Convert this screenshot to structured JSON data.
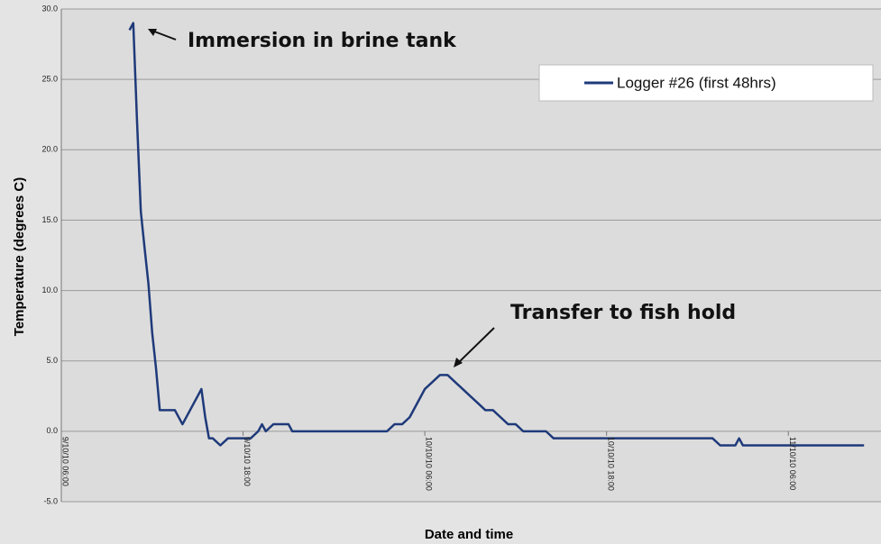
{
  "chart_data": {
    "type": "line",
    "y_label": "Temperature (degrees C)",
    "x_label": "Date and time",
    "annotations": [
      "Immersion in brine tank",
      "Transfer to fish hold"
    ],
    "ylim": [
      -5,
      30
    ],
    "yticks": [
      {
        "value": -5,
        "label": "-5.0"
      },
      {
        "value": 0,
        "label": "0.0"
      },
      {
        "value": 5,
        "label": "5.0"
      },
      {
        "value": 10,
        "label": "10.0"
      },
      {
        "value": 15,
        "label": "15.0"
      },
      {
        "value": 20,
        "label": "20.0"
      },
      {
        "value": 25,
        "label": "25.0"
      },
      {
        "value": 30,
        "label": "30.0"
      }
    ],
    "xlim": [
      "9/10/10 06:00",
      "11/10/10 12:00"
    ],
    "xticks": [
      "9/10/10 06:00",
      "9/10/10 18:00",
      "10/10/10 06:00",
      "10/10/10 18:00",
      "11/10/10 06:00"
    ],
    "grid": true,
    "x": [
      "9/10/10 10:30",
      "9/10/10 10:45",
      "9/10/10 11:00",
      "9/10/10 11:15",
      "9/10/10 11:30",
      "9/10/10 11:45",
      "9/10/10 12:00",
      "9/10/10 12:15",
      "9/10/10 12:30",
      "9/10/10 13:00",
      "9/10/10 13:30",
      "9/10/10 14:00",
      "9/10/10 14:30",
      "9/10/10 15:00",
      "9/10/10 15:15",
      "9/10/10 15:30",
      "9/10/10 15:45",
      "9/10/10 16:00",
      "9/10/10 16:30",
      "9/10/10 17:00",
      "9/10/10 18:00",
      "9/10/10 18:30",
      "9/10/10 19:00",
      "9/10/10 19:15",
      "9/10/10 19:30",
      "9/10/10 20:00",
      "9/10/10 21:00",
      "9/10/10 21:15",
      "10/10/10 00:00",
      "10/10/10 03:30",
      "10/10/10 04:00",
      "10/10/10 04:30",
      "10/10/10 05:00",
      "10/10/10 05:30",
      "10/10/10 06:00",
      "10/10/10 06:30",
      "10/10/10 07:00",
      "10/10/10 07:30",
      "10/10/10 08:00",
      "10/10/10 08:30",
      "10/10/10 09:00",
      "10/10/10 09:30",
      "10/10/10 10:00",
      "10/10/10 10:30",
      "10/10/10 11:00",
      "10/10/10 11:30",
      "10/10/10 12:00",
      "10/10/10 12:30",
      "10/10/10 14:00",
      "10/10/10 14:30",
      "10/10/10 20:00",
      "11/10/10 01:00",
      "11/10/10 01:30",
      "11/10/10 02:30",
      "11/10/10 02:45",
      "11/10/10 03:00",
      "11/10/10 07:00",
      "11/10/10 11:00"
    ],
    "series": [
      {
        "name": "Logger #26 (first 48hrs)",
        "color": "#1f3a7a",
        "values": [
          28.5,
          29.0,
          22.0,
          15.6,
          13.0,
          10.5,
          7.0,
          4.5,
          1.5,
          1.5,
          1.5,
          0.5,
          1.5,
          2.5,
          3.0,
          1.0,
          -0.5,
          -0.5,
          -1.0,
          -0.5,
          -0.5,
          -0.5,
          0.0,
          0.5,
          0.0,
          0.5,
          0.5,
          0.0,
          0.0,
          0.0,
          0.5,
          0.5,
          1.0,
          2.0,
          3.0,
          3.5,
          4.0,
          4.0,
          3.5,
          3.0,
          2.5,
          2.0,
          1.5,
          1.5,
          1.0,
          0.5,
          0.5,
          0.0,
          0.0,
          -0.5,
          -0.5,
          -0.5,
          -1.0,
          -1.0,
          -0.5,
          -1.0,
          -1.0,
          -1.0
        ]
      }
    ]
  }
}
